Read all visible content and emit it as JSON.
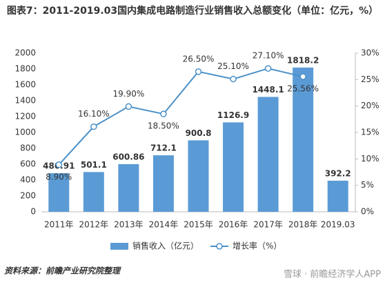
{
  "chart_data": {
    "type": "bar",
    "title": "图表7：2011-2019.03国内集成电路制造行业销售收入总额变化（单位：亿元，%）",
    "categories": [
      "2011年",
      "2012年",
      "2013年",
      "2014年",
      "2015年",
      "2016年",
      "2017年",
      "2018年",
      "2019.03"
    ],
    "series": [
      {
        "name": "销售收入（亿元）",
        "color": "#5b9bd5",
        "type": "bar",
        "values": [
          486.91,
          501.1,
          600.86,
          712.1,
          900.8,
          1126.9,
          1448.1,
          1818.2,
          392.2
        ]
      },
      {
        "name": "增长率（%）",
        "color": "#4a90c8",
        "type": "line",
        "axis": "y2",
        "values": [
          8.9,
          16.1,
          19.9,
          18.5,
          26.5,
          25.1,
          27.1,
          25.56,
          null
        ],
        "value_labels": [
          "8.90%",
          "16.10%",
          "19.90%",
          "18.50%",
          "26.50%",
          "25.10%",
          "27.10%",
          "25.56%",
          null
        ]
      }
    ],
    "ylim": [
      0,
      2000
    ],
    "yticks": [
      0,
      200,
      400,
      600,
      800,
      1000,
      1200,
      1400,
      1600,
      1800,
      2000
    ],
    "y2lim": [
      0,
      30
    ],
    "y2ticks": [
      {
        "value": 0,
        "label": "0%"
      },
      {
        "value": 5,
        "label": "5%"
      },
      {
        "value": 10,
        "label": "10%"
      },
      {
        "value": 15,
        "label": "15%"
      },
      {
        "value": 20,
        "label": "20%"
      },
      {
        "value": 25,
        "label": "25%"
      },
      {
        "value": 30,
        "label": "30%"
      }
    ],
    "legend": "bottom",
    "source": "资料来源：前瞻产业研究院整理",
    "watermark": "雪球 · 前瞻经济学人APP"
  }
}
